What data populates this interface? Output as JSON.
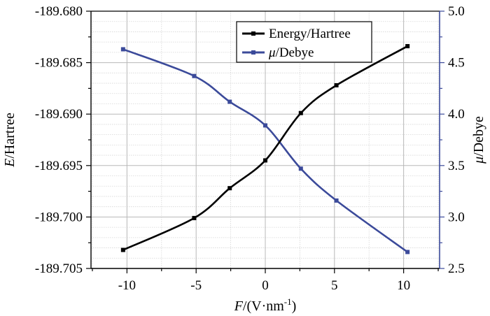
{
  "chart_data": {
    "type": "line",
    "x": [
      -10.28,
      -5.14,
      -2.57,
      0,
      2.57,
      5.14,
      10.28
    ],
    "xlim": [
      -12.6,
      12.6
    ],
    "xticks": [
      -10,
      -5,
      0,
      5,
      10
    ],
    "xtick_labels": [
      "-10",
      "-5",
      "0",
      "5",
      "10"
    ],
    "xlabel": {
      "italic": "F",
      "rest": "/(V·nm",
      "sup": "-1",
      "close": ")"
    },
    "ylabel_left": {
      "italic": "E",
      "rest": "/Hartree"
    },
    "ylabel_right": {
      "italic": "μ",
      "rest": "/Debye"
    },
    "ylim_left": [
      -189.705,
      -189.68
    ],
    "yticks_left": [
      -189.705,
      -189.7,
      -189.695,
      -189.69,
      -189.685,
      -189.68
    ],
    "ytick_labels_left": [
      "-189.705",
      "-189.700",
      "-189.695",
      "-189.690",
      "-189.685",
      "-189.680"
    ],
    "ylim_right": [
      2.5,
      5.0
    ],
    "yticks_right": [
      2.5,
      3.0,
      3.5,
      4.0,
      4.5,
      5.0
    ],
    "ytick_labels_right": [
      "2.5",
      "3.0",
      "3.5",
      "4.0",
      "4.5",
      "5.0"
    ],
    "grid": true,
    "legend_position": "top-right",
    "series": [
      {
        "name": "Energy/Hartree",
        "axis": "left",
        "color": "#000000",
        "values": [
          -189.7032,
          -189.7001,
          -189.6972,
          -189.6945,
          -189.6899,
          -189.6872,
          -189.6834
        ]
      },
      {
        "name": "/Debye",
        "name_prefix_italic": "μ",
        "axis": "right",
        "color": "#3b4a9a",
        "values": [
          4.63,
          4.37,
          4.12,
          3.89,
          3.47,
          3.16,
          2.66
        ]
      }
    ]
  }
}
